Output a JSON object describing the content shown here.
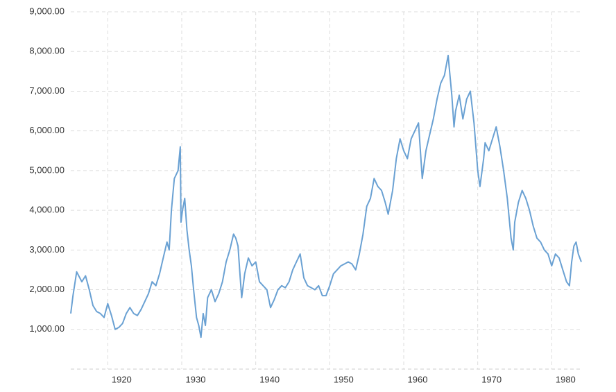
{
  "chart_data": {
    "type": "line",
    "x": [
      1915.0,
      1915.3,
      1915.8,
      1916.5,
      1917.0,
      1917.5,
      1918.0,
      1918.5,
      1919.0,
      1919.5,
      1920.0,
      1920.5,
      1921.0,
      1921.5,
      1922.0,
      1922.5,
      1923.0,
      1923.5,
      1924.0,
      1924.5,
      1925.0,
      1925.5,
      1926.0,
      1926.5,
      1927.0,
      1927.5,
      1928.0,
      1928.3,
      1928.6,
      1929.0,
      1929.5,
      1929.8,
      1929.9,
      1930.1,
      1930.4,
      1930.7,
      1931.0,
      1931.3,
      1931.6,
      1932.0,
      1932.3,
      1932.6,
      1932.9,
      1933.2,
      1933.5,
      1934.0,
      1934.5,
      1935.0,
      1935.5,
      1936.0,
      1936.5,
      1937.0,
      1937.3,
      1937.6,
      1937.9,
      1938.1,
      1938.5,
      1939.0,
      1939.5,
      1940.0,
      1940.5,
      1941.0,
      1941.5,
      1942.0,
      1942.5,
      1943.0,
      1943.5,
      1944.0,
      1944.5,
      1945.0,
      1945.5,
      1946.0,
      1946.5,
      1947.0,
      1947.5,
      1948.0,
      1948.5,
      1949.0,
      1949.5,
      1950.0,
      1950.5,
      1951.0,
      1951.5,
      1952.0,
      1952.5,
      1953.0,
      1953.5,
      1954.0,
      1954.5,
      1955.0,
      1955.5,
      1956.0,
      1956.5,
      1957.0,
      1957.5,
      1957.9,
      1958.5,
      1959.0,
      1959.5,
      1960.0,
      1960.5,
      1961.0,
      1961.5,
      1962.0,
      1962.5,
      1963.0,
      1963.5,
      1964.0,
      1964.5,
      1965.0,
      1965.5,
      1966.0,
      1966.5,
      1966.8,
      1967.0,
      1967.5,
      1968.0,
      1968.5,
      1969.0,
      1969.5,
      1970.0,
      1970.3,
      1970.8,
      1971.0,
      1971.5,
      1972.0,
      1972.5,
      1973.0,
      1973.5,
      1974.0,
      1974.5,
      1974.8,
      1975.0,
      1975.5,
      1976.0,
      1976.5,
      1977.0,
      1977.5,
      1978.0,
      1978.5,
      1979.0,
      1979.5,
      1980.0,
      1980.5,
      1981.0,
      1981.5,
      1982.0,
      1982.4,
      1982.7,
      1983.0,
      1983.3,
      1983.6,
      1984.0
    ],
    "series": [
      {
        "color": "#6aa1d3",
        "values": [
          1400,
          1850,
          2450,
          2200,
          2350,
          2000,
          1600,
          1450,
          1400,
          1300,
          1650,
          1350,
          1000,
          1050,
          1150,
          1400,
          1550,
          1400,
          1350,
          1500,
          1700,
          1900,
          2200,
          2100,
          2400,
          2800,
          3200,
          3000,
          4000,
          4800,
          5000,
          5600,
          3700,
          4000,
          4300,
          3500,
          3000,
          2600,
          2000,
          1300,
          1100,
          800,
          1400,
          1100,
          1800,
          2000,
          1700,
          1900,
          2200,
          2700,
          3000,
          3400,
          3300,
          3100,
          2300,
          1800,
          2400,
          2800,
          2600,
          2700,
          2200,
          2100,
          2000,
          1550,
          1750,
          2000,
          2100,
          2050,
          2200,
          2500,
          2700,
          2900,
          2300,
          2100,
          2050,
          2000,
          2100,
          1850,
          1850,
          2100,
          2400,
          2500,
          2600,
          2650,
          2700,
          2650,
          2500,
          2900,
          3400,
          4100,
          4300,
          4800,
          4600,
          4500,
          4200,
          3900,
          4500,
          5300,
          5800,
          5500,
          5300,
          5800,
          6000,
          6200,
          4800,
          5500,
          5900,
          6300,
          6800,
          7200,
          7400,
          7900,
          6900,
          6100,
          6500,
          6900,
          6300,
          6800,
          7000,
          6200,
          5000,
          4600,
          5300,
          5700,
          5500,
          5800,
          6100,
          5600,
          5000,
          4300,
          3300,
          3000,
          3700,
          4200,
          4500,
          4300,
          4000,
          3600,
          3300,
          3200,
          3000,
          2900,
          2600,
          2900,
          2800,
          2500,
          2200,
          2100,
          2700,
          3100,
          3200,
          2900,
          2700
        ]
      }
    ],
    "xlim": [
      1915,
      1984
    ],
    "xticks": [
      1920,
      1930,
      1940,
      1950,
      1960,
      1970,
      1980
    ],
    "ylim": [
      0,
      9000
    ],
    "yticks": [
      {
        "value": 1000,
        "label": "1,000.00"
      },
      {
        "value": 2000,
        "label": "2,000.00"
      },
      {
        "value": 3000,
        "label": "3,000.00"
      },
      {
        "value": 4000,
        "label": "4,000.00"
      },
      {
        "value": 5000,
        "label": "5,000.00"
      },
      {
        "value": 6000,
        "label": "6,000.00"
      },
      {
        "value": 7000,
        "label": "7,000.00"
      },
      {
        "value": 8000,
        "label": "8,000.00"
      },
      {
        "value": 9000,
        "label": "9,000.00"
      }
    ],
    "grid": true
  }
}
